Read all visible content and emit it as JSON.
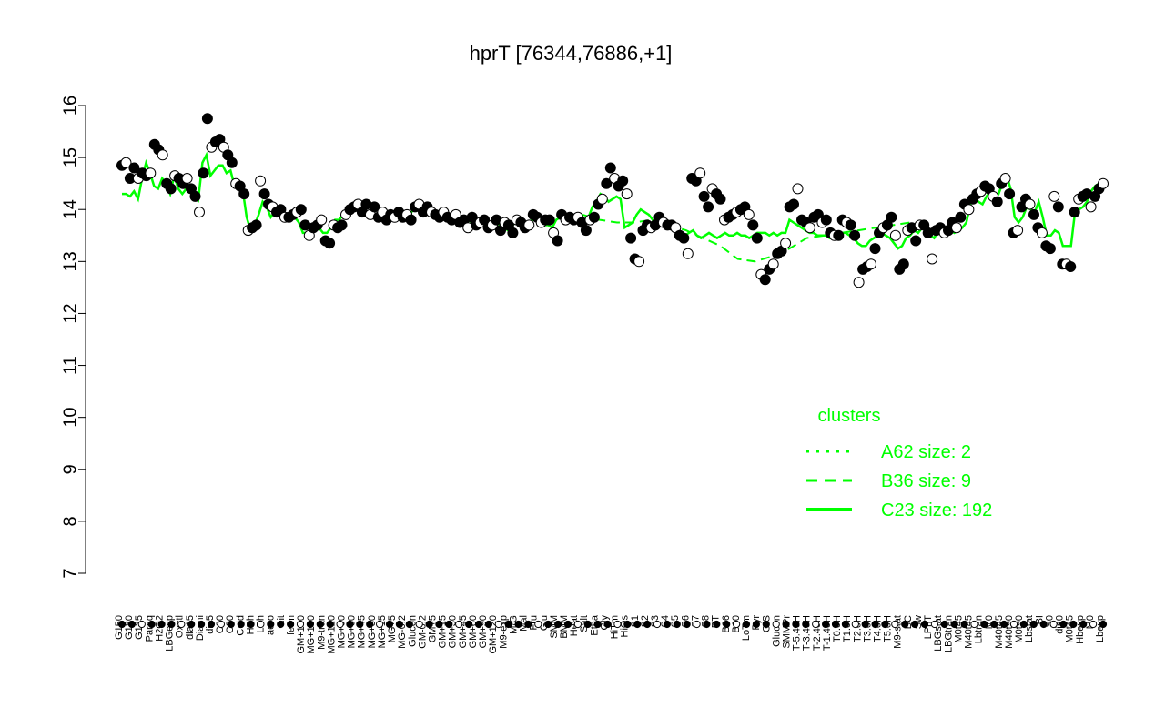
{
  "chart_data": {
    "type": "line",
    "title": "hprT [76344,76886,+1]",
    "xlabel": "",
    "ylabel": "",
    "ylim": [
      7,
      16
    ],
    "yticks": [
      "7",
      "8",
      "9",
      "10",
      "11",
      "12",
      "13",
      "14",
      "15",
      "16"
    ],
    "grid": false,
    "x_tick_labels": [
      "G150",
      "G180",
      "G135",
      "Paraq",
      "H2O2",
      "LBGexp",
      "Oxctl",
      "dia15",
      "Diami",
      "dia5",
      "C90",
      "C30",
      "Cold",
      "HPh",
      "LPh",
      "aero",
      "nit",
      "ferm",
      "GM+150",
      "MG+150",
      "M9-tran",
      "MG+120",
      "MG+90",
      "MG+60",
      "MG+45",
      "MG+30",
      "MG+15",
      "MG+5",
      "MG-0.2",
      "Glucon",
      "GM-0.2",
      "GM+5",
      "GM+15",
      "GM+30",
      "GM+45",
      "GM+60",
      "GM+90",
      "GM+120",
      "M9-exp",
      "M/G",
      "Mal",
      "Fru",
      "Glu",
      "SMM",
      "BMM",
      "Heat",
      "Salt",
      "Etha",
      "Gly",
      "HiTm",
      "HiOs",
      "S1",
      "S2",
      "S3",
      "S4",
      "S5",
      "S6",
      "S7",
      "S8",
      "BT",
      "B36",
      "B60",
      "LoTm",
      "Pyr",
      "G/S",
      "Glucon",
      "SMMPr",
      "T-5.40H",
      "T-3.40H",
      "T-2.40H",
      "T-1.40H",
      "T0.0H",
      "T1.0H",
      "T2.0H",
      "T3.0H",
      "T4.0H",
      "T5.0H",
      "M9-stat",
      "BC",
      "Sw",
      "LPhT",
      "LBGstat",
      "LBGtran",
      "M0t45",
      "M40t45",
      "Lbtran",
      "M0",
      "M40t45",
      "M40t90",
      "M0t90",
      "Lbstat",
      "BI",
      "S0",
      "dia0",
      "M0t45",
      "Hbexp",
      "M0",
      "Lbexp"
    ],
    "legend": {
      "title": "clusters",
      "position": "right",
      "entries": [
        {
          "label": "A62 size: 2",
          "style": "dotted"
        },
        {
          "label": "B36 size: 9",
          "style": "dashed"
        },
        {
          "label": "C23 size: 192",
          "style": "solid"
        }
      ]
    },
    "series": [
      {
        "style": "points",
        "values": [
          14.85,
          14.9,
          14.6,
          14.8,
          14.6,
          14.7,
          14.65,
          14.7,
          15.25,
          15.15,
          15.05,
          14.5,
          14.4,
          14.65,
          14.6,
          14.5,
          14.6,
          14.4,
          14.25,
          13.95,
          14.7,
          15.75,
          15.2,
          15.3,
          15.35,
          15.2,
          15.05,
          14.9,
          14.5,
          14.45,
          14.3,
          13.6,
          13.65,
          13.7,
          14.55,
          14.3,
          14.1,
          14.05,
          13.95,
          14.0,
          13.85,
          13.85,
          13.9,
          13.95,
          14.0,
          13.7,
          13.5,
          13.65,
          13.7,
          13.8,
          13.4,
          13.35,
          13.7,
          13.65,
          13.7,
          13.9,
          14.0,
          14.05,
          14.1,
          13.95,
          14.1,
          13.9,
          14.05,
          13.85,
          13.95,
          13.8,
          13.9,
          13.85,
          13.95,
          13.85,
          13.9,
          13.8,
          14.05,
          14.1,
          13.95,
          14.05,
          13.95,
          13.9,
          13.85,
          13.95,
          13.85,
          13.8,
          13.9,
          13.75,
          13.8,
          13.65,
          13.85,
          13.7,
          13.75,
          13.8,
          13.65,
          13.7,
          13.8,
          13.6,
          13.75,
          13.7,
          13.55,
          13.8,
          13.75,
          13.65,
          13.7,
          13.9,
          13.85,
          13.75,
          13.8,
          13.8,
          13.55,
          13.4,
          13.9,
          13.8,
          13.85,
          13.8,
          13.85,
          13.75,
          13.6,
          13.8,
          13.85,
          14.1,
          14.2,
          14.5,
          14.8,
          14.6,
          14.45,
          14.55,
          14.3,
          13.45,
          13.05,
          13.0,
          13.6,
          13.7,
          13.65,
          13.7,
          13.85,
          13.75,
          13.7,
          13.7,
          13.65,
          13.5,
          13.45,
          13.15,
          14.6,
          14.55,
          14.7,
          14.25,
          14.05,
          14.4,
          14.3,
          14.2,
          13.8,
          13.85,
          13.9,
          13.95,
          14.0,
          14.05,
          13.9,
          13.7,
          13.45,
          12.75,
          12.65,
          12.85,
          12.95,
          13.15,
          13.2,
          13.35,
          14.05,
          14.1,
          14.4,
          13.8,
          13.75,
          13.65,
          13.85,
          13.9,
          13.75,
          13.8,
          13.55,
          13.5,
          13.5,
          13.8,
          13.75,
          13.7,
          13.5,
          12.6,
          12.85,
          12.9,
          12.95,
          13.25,
          13.55,
          13.65,
          13.7,
          13.85,
          13.5,
          12.85,
          12.95,
          13.6,
          13.65,
          13.4,
          13.7,
          13.7,
          13.55,
          13.05,
          13.6,
          13.65,
          13.55,
          13.6,
          13.75,
          13.65,
          13.85,
          14.1,
          14.0,
          14.2,
          14.3,
          14.35,
          14.45,
          14.4,
          14.25,
          14.15,
          14.5,
          14.6,
          14.3,
          13.55,
          13.6,
          14.05,
          14.2,
          14.1,
          13.9,
          13.65,
          13.55,
          13.3,
          13.25,
          14.25,
          14.05,
          12.95,
          12.95,
          12.9,
          13.95,
          14.2,
          14.25,
          14.3,
          14.05,
          14.25,
          14.4,
          14.5
        ]
      },
      {
        "style": "solid",
        "values": [
          14.3,
          14.3,
          14.25,
          14.35,
          14.2,
          14.6,
          14.9,
          14.7,
          14.45,
          14.4,
          14.6,
          14.5,
          14.3,
          14.65,
          14.4,
          14.3,
          14.4,
          14.35,
          14.35,
          14.2,
          14.9,
          15.05,
          14.65,
          14.75,
          14.85,
          14.85,
          14.7,
          14.75,
          14.45,
          14.45,
          14.4,
          13.85,
          13.6,
          13.7,
          13.9,
          14.15,
          14.05,
          13.85,
          13.95,
          14.0,
          13.9,
          13.9,
          13.85,
          13.85,
          13.75,
          13.55,
          13.55,
          13.6,
          13.6,
          13.65,
          13.55,
          13.55,
          13.65,
          13.8,
          13.8,
          13.9,
          13.95,
          14.0,
          14.05,
          14.05,
          14.0,
          13.95,
          14.0,
          13.9,
          13.95,
          13.9,
          13.85,
          13.9,
          13.85,
          13.8,
          13.85,
          13.85,
          13.95,
          14.05,
          14.0,
          14.0,
          13.95,
          13.9,
          13.9,
          13.85,
          13.85,
          13.8,
          13.8,
          13.75,
          13.75,
          13.7,
          13.8,
          13.75,
          13.7,
          13.75,
          13.7,
          13.65,
          13.7,
          13.75,
          13.7,
          13.65,
          13.6,
          13.7,
          13.75,
          13.7,
          13.7,
          13.75,
          13.8,
          13.8,
          13.75,
          13.7,
          13.7,
          13.65,
          13.8,
          13.85,
          13.8,
          13.85,
          13.85,
          13.75,
          13.7,
          13.75,
          13.85,
          14.05,
          14.15,
          14.3,
          14.25,
          14.15,
          14.2,
          14.25,
          14.2,
          13.65,
          13.7,
          13.75,
          13.9,
          14.0,
          13.95,
          13.9,
          13.8,
          13.75,
          13.7,
          13.75,
          13.7,
          13.65,
          13.6,
          13.55,
          13.5,
          13.55,
          13.6,
          13.5,
          13.45,
          13.5,
          13.55,
          13.5,
          13.45,
          13.5,
          13.55,
          13.5,
          13.5,
          13.55,
          13.5,
          13.5,
          13.45,
          13.5,
          13.55,
          13.55,
          13.55,
          13.5,
          13.55,
          13.5,
          13.55,
          13.55,
          13.8,
          13.75,
          13.7,
          13.65,
          13.6,
          13.55,
          13.55,
          13.5,
          13.5,
          13.5,
          13.45,
          13.5,
          13.5,
          13.55,
          13.55,
          13.5,
          13.45,
          13.35,
          13.3,
          13.3,
          13.4,
          13.45,
          13.5,
          13.55,
          13.5,
          13.45,
          13.35,
          13.25,
          13.3,
          13.45,
          13.5,
          13.6,
          13.55,
          13.65,
          13.6,
          13.5,
          13.45,
          13.6,
          13.55,
          13.55,
          13.6,
          13.55,
          13.6,
          13.65,
          13.75,
          14.1,
          14.25,
          14.15,
          14.1,
          14.25,
          14.35,
          14.2,
          14.3,
          14.5,
          14.65,
          14.4,
          13.85,
          13.75,
          13.85,
          14.05,
          14.0,
          13.95,
          14.15,
          13.85,
          13.5,
          13.5,
          13.6,
          13.55,
          13.3,
          13.3,
          13.3,
          13.95,
          14.0,
          14.05,
          14.15,
          14.35,
          14.45,
          14.5,
          14.55
        ]
      },
      {
        "style": "dashed",
        "values": [
          13.9,
          13.8,
          13.75,
          13.75,
          13.8,
          13.7,
          13.6,
          13.45,
          13.3,
          13.05,
          13.0,
          13.1,
          13.25,
          13.45,
          13.5,
          13.55,
          13.6,
          13.65,
          13.7,
          13.75
        ]
      }
    ]
  }
}
